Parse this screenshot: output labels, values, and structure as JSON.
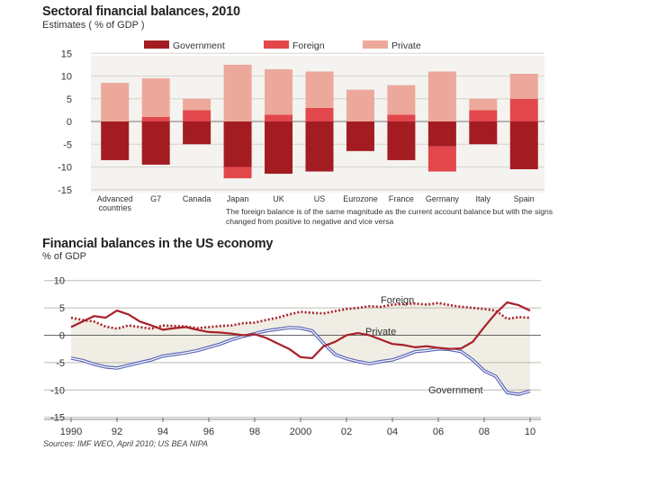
{
  "header": {
    "title1": "Sectoral financial balances, 2010",
    "subtitle1": "Estimates  ( % of GDP )",
    "title2": "Financial balances in the US economy",
    "subtitle2": "% of GDP",
    "note": "The foreign balance is of the same magnitude as the current account balance but with the signs changed from positive to negative and vice versa",
    "source": "Sources: IMF WEO, April 2010; US BEA NIPA"
  },
  "colors": {
    "government": "#a31c22",
    "foreign": "#e2474b",
    "private": "#eda89c",
    "fill": "#efede4",
    "gov_line": "#5a66b8",
    "other_line": "#a8202a"
  },
  "chart_data": [
    {
      "type": "bar",
      "stacking": "stacked",
      "title": "Sectoral financial balances, 2010",
      "ylabel": "Estimates ( % of GDP )",
      "ylim": [
        -16,
        16
      ],
      "yticks": [
        15,
        10,
        5,
        0,
        -5,
        -10,
        -15
      ],
      "categories": [
        "Advanced countries",
        "G7",
        "Canada",
        "Japan",
        "UK",
        "US",
        "Eurozone",
        "France",
        "Germany",
        "Italy",
        "Spain"
      ],
      "series": [
        {
          "name": "Government",
          "values": [
            -8.5,
            -9.5,
            -5.0,
            -10.0,
            -11.5,
            -11.0,
            -6.5,
            -8.5,
            -5.5,
            -5.0,
            -10.5
          ]
        },
        {
          "name": "Foreign",
          "values": [
            0.0,
            1.0,
            2.5,
            -2.5,
            1.5,
            3.0,
            0.0,
            1.5,
            -5.5,
            2.5,
            5.0
          ]
        },
        {
          "name": "Private",
          "values": [
            8.5,
            8.5,
            2.5,
            12.5,
            10.0,
            8.0,
            7.0,
            6.5,
            11.0,
            2.5,
            5.5
          ]
        }
      ],
      "legend": [
        "Government",
        "Foreign",
        "Private"
      ]
    },
    {
      "type": "line",
      "title": "Financial balances in the US economy",
      "ylabel": "% of GDP",
      "ylim": [
        -15,
        10
      ],
      "yticks": [
        10,
        5,
        0,
        -5,
        -10,
        -15
      ],
      "xlim": [
        1990,
        2010
      ],
      "xticks": [
        1990,
        1992,
        1994,
        1996,
        1998,
        2000,
        2002,
        2004,
        2006,
        2008,
        2010
      ],
      "xtick_labels": [
        "1990",
        "92",
        "94",
        "96",
        "98",
        "2000",
        "02",
        "04",
        "06",
        "08",
        "10"
      ],
      "series": [
        {
          "name": "Foreign",
          "style": "dotted",
          "x": [
            1990,
            1990.5,
            1991,
            1991.5,
            1992,
            1992.5,
            1993,
            1993.5,
            1994,
            1994.5,
            1995,
            1995.5,
            1996,
            1996.5,
            1997,
            1997.5,
            1998,
            1998.5,
            1999,
            1999.5,
            2000,
            2000.5,
            2001,
            2001.5,
            2002,
            2002.5,
            2003,
            2003.5,
            2004,
            2004.5,
            2005,
            2005.5,
            2006,
            2006.5,
            2007,
            2007.5,
            2008,
            2008.5,
            2009,
            2009.5,
            2010
          ],
          "y": [
            3.2,
            2.8,
            2.5,
            1.6,
            1.2,
            1.8,
            1.5,
            1.2,
            1.8,
            1.7,
            1.6,
            1.3,
            1.5,
            1.7,
            1.8,
            2.2,
            2.3,
            2.8,
            3.2,
            3.8,
            4.3,
            4.1,
            4.0,
            4.4,
            4.8,
            5.0,
            5.3,
            5.2,
            5.6,
            5.7,
            5.8,
            5.6,
            5.9,
            5.5,
            5.2,
            5.0,
            4.8,
            4.5,
            3.0,
            3.3,
            3.2
          ]
        },
        {
          "name": "Private",
          "style": "solid",
          "x": [
            1990,
            1990.5,
            1991,
            1991.5,
            1992,
            1992.5,
            1993,
            1993.5,
            1994,
            1994.5,
            1995,
            1995.5,
            1996,
            1996.5,
            1997,
            1997.5,
            1998,
            1998.5,
            1999,
            1999.5,
            2000,
            2000.5,
            2001,
            2001.5,
            2002,
            2002.5,
            2003,
            2003.5,
            2004,
            2004.5,
            2005,
            2005.5,
            2006,
            2006.5,
            2007,
            2007.5,
            2008,
            2008.5,
            2009,
            2009.5,
            2010
          ],
          "y": [
            1.5,
            2.5,
            3.5,
            3.2,
            4.5,
            3.8,
            2.5,
            1.8,
            1.0,
            1.3,
            1.5,
            1.0,
            0.6,
            0.5,
            0.3,
            0.0,
            0.2,
            -0.5,
            -1.5,
            -2.5,
            -4.0,
            -4.2,
            -2.0,
            -1.2,
            0.0,
            0.4,
            0.0,
            -0.8,
            -1.6,
            -1.8,
            -2.2,
            -2.0,
            -2.3,
            -2.5,
            -2.4,
            -1.2,
            1.5,
            4.0,
            6.0,
            5.5,
            4.5
          ]
        },
        {
          "name": "Government",
          "style": "double",
          "x": [
            1990,
            1990.5,
            1991,
            1991.5,
            1992,
            1992.5,
            1993,
            1993.5,
            1994,
            1994.5,
            1995,
            1995.5,
            1996,
            1996.5,
            1997,
            1997.5,
            1998,
            1998.5,
            1999,
            1999.5,
            2000,
            2000.5,
            2001,
            2001.5,
            2002,
            2002.5,
            2003,
            2003.5,
            2004,
            2004.5,
            2005,
            2005.5,
            2006,
            2006.5,
            2007,
            2007.5,
            2008,
            2008.5,
            2009,
            2009.5,
            2010
          ],
          "y": [
            -4.2,
            -4.6,
            -5.3,
            -5.8,
            -6.0,
            -5.5,
            -5.0,
            -4.5,
            -3.8,
            -3.5,
            -3.2,
            -2.8,
            -2.2,
            -1.6,
            -0.8,
            -0.2,
            0.3,
            0.8,
            1.1,
            1.4,
            1.3,
            0.8,
            -1.5,
            -3.5,
            -4.3,
            -4.8,
            -5.2,
            -4.8,
            -4.5,
            -3.8,
            -3.0,
            -2.8,
            -2.5,
            -2.6,
            -3.0,
            -4.5,
            -6.5,
            -7.5,
            -10.5,
            -10.8,
            -10.2
          ]
        }
      ],
      "annotations": [
        "Foreign",
        "Private",
        "Government"
      ]
    }
  ]
}
